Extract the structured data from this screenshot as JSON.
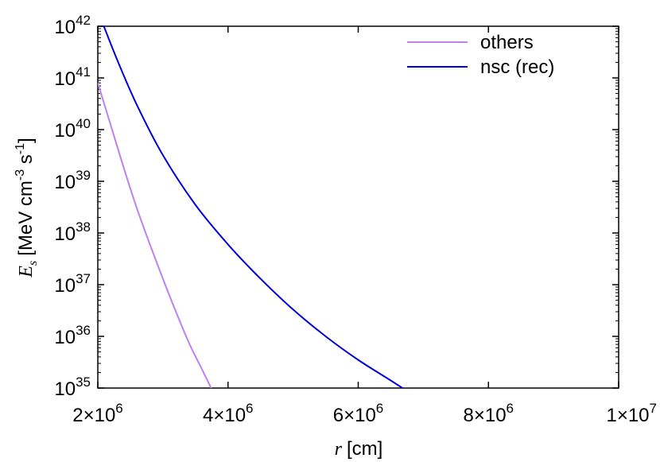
{
  "chart_data": {
    "type": "line",
    "xlabel": {
      "symbol": "r",
      "unit": "[cm]"
    },
    "ylabel": {
      "symbol": "E",
      "subscript": "s",
      "unit_prefix": "[MeV cm",
      "unit_exp1": "-3",
      "unit_mid": " s",
      "unit_exp2": "-1",
      "unit_suffix": "]"
    },
    "xlim": [
      2000000,
      10000000
    ],
    "ylim": [
      1e+35,
      1e+42
    ],
    "yscale": "log",
    "grid": false,
    "legend_position": "top-right",
    "x_ticks": [
      {
        "value": 2000000,
        "mantissa": "2×10",
        "exp": "6"
      },
      {
        "value": 4000000,
        "mantissa": "4×10",
        "exp": "6"
      },
      {
        "value": 6000000,
        "mantissa": "6×10",
        "exp": "6"
      },
      {
        "value": 8000000,
        "mantissa": "8×10",
        "exp": "6"
      },
      {
        "value": 10000000,
        "mantissa": "1×10",
        "exp": "7"
      }
    ],
    "y_ticks": [
      {
        "value": 1e+35,
        "base": "10",
        "exp": "35"
      },
      {
        "value": 1e+36,
        "base": "10",
        "exp": "36"
      },
      {
        "value": 1e+37,
        "base": "10",
        "exp": "37"
      },
      {
        "value": 1e+38,
        "base": "10",
        "exp": "38"
      },
      {
        "value": 1e+39,
        "base": "10",
        "exp": "39"
      },
      {
        "value": 1e+40,
        "base": "10",
        "exp": "40"
      },
      {
        "value": 1e+41,
        "base": "10",
        "exp": "41"
      },
      {
        "value": 1e+42,
        "base": "10",
        "exp": "42"
      }
    ],
    "series": [
      {
        "name": "others",
        "color": "#bf80f0",
        "points": [
          [
            2000000,
            8e+40
          ],
          [
            2200000,
            1.2e+40
          ],
          [
            2400000,
            1.8e+39
          ],
          [
            2600000,
            3e+38
          ],
          [
            2800000,
            6e+37
          ],
          [
            3000000,
            1.3e+37
          ],
          [
            3200000,
            3e+36
          ],
          [
            3400000,
            7.5e+35
          ],
          [
            3600000,
            2.3e+35
          ],
          [
            3800000,
            7e+34
          ]
        ],
        "x_points": [
          2000000,
          2200000,
          2400000,
          2600000,
          2800000,
          3000000,
          3200000,
          3400000,
          3600000,
          3800000
        ],
        "y_points": [
          8e+40,
          1.2e+40,
          1.8e+39,
          3e+38,
          6e+37,
          1.3e+37,
          3e+36,
          7.5e+35,
          2.3e+35,
          7e+34
        ]
      },
      {
        "name": "nsc (rec)",
        "color": "#0000dd",
        "x_points": [
          2000000,
          2300000,
          2600000,
          3000000,
          3500000,
          4000000,
          4500000,
          5000000,
          5500000,
          6000000,
          6500000,
          7000000,
          7500000,
          7900000
        ],
        "y_points": [
          2e+42,
          2.2e+41,
          3e+40,
          3.2e+39,
          3.5e+38,
          6e+37,
          1.3e+37,
          3.3e+36,
          1e+36,
          3.5e+35,
          1.4e+35,
          5.5e+34,
          2.2e+34,
          1e+34
        ]
      }
    ]
  }
}
